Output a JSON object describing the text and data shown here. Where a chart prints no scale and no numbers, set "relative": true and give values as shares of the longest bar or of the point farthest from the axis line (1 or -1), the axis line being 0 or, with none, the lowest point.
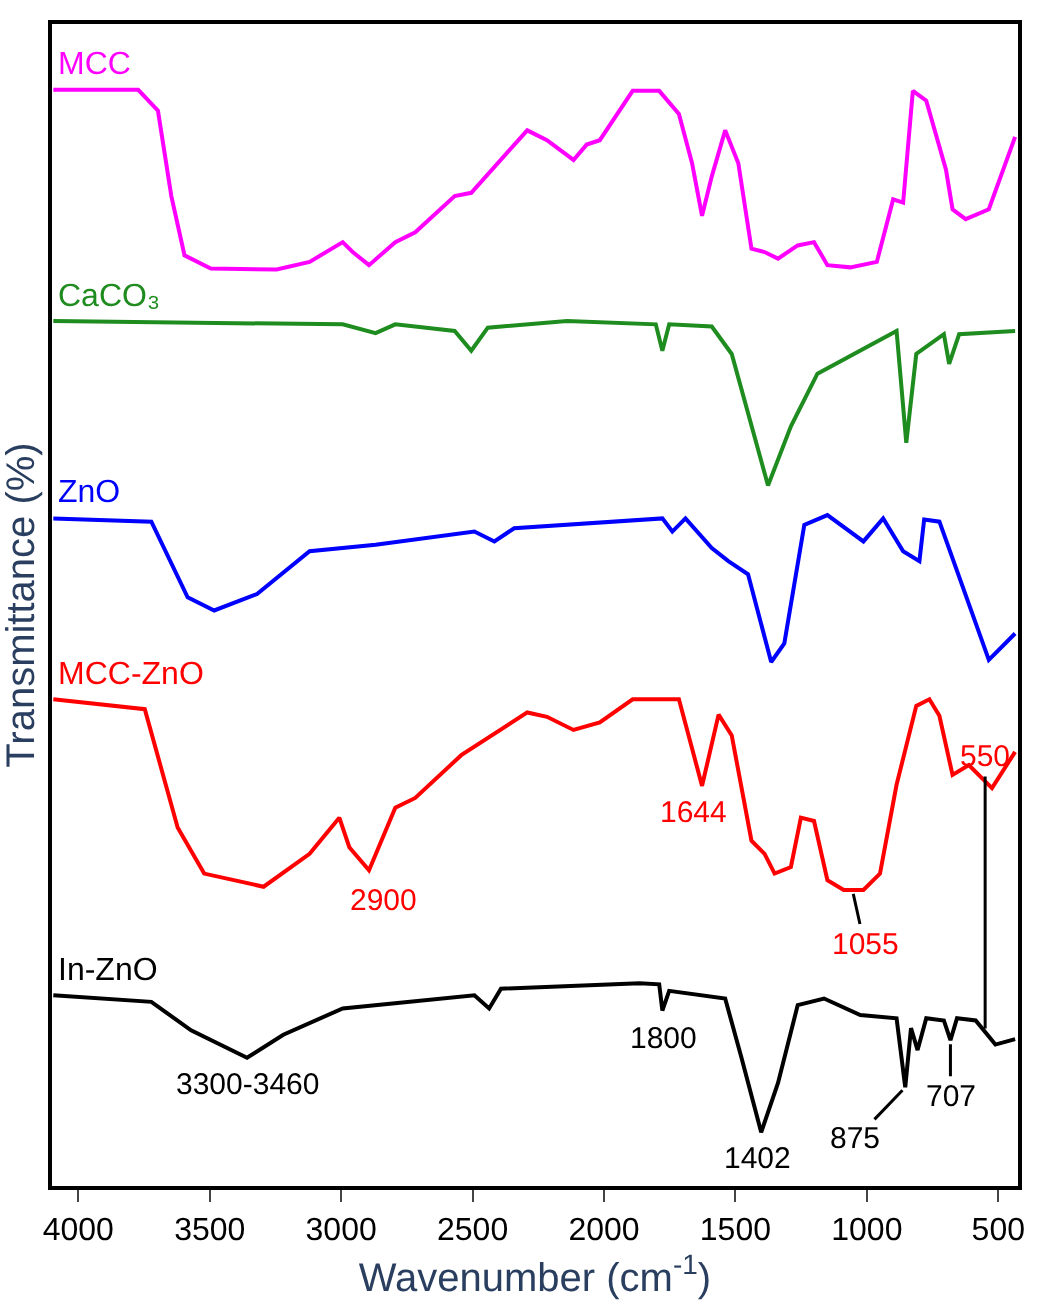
{
  "chart_data": {
    "type": "line",
    "relative": true,
    "xlabel": "Wavenumber (cm$^{-1}$)",
    "ylabel": "Transmittance (%)",
    "xlim": [
      4100,
      425
    ],
    "xticks": [
      4000,
      3500,
      3000,
      2500,
      2000,
      1500,
      1000,
      500
    ],
    "tick_labels": "x",
    "grid": false,
    "legend": false,
    "marker": "none",
    "line_style": "solid",
    "series": [
      {
        "name": "MCC",
        "color": "#ff00ff",
        "x": [
          4095,
          3772,
          3697,
          3646,
          3596,
          3496,
          3245,
          3120,
          2994,
          2956,
          2894,
          2794,
          2718,
          2568,
          2505,
          2292,
          2217,
          2116,
          2066,
          2016,
          1891,
          1790,
          1715,
          1665,
          1627,
          1590,
          1539,
          1489,
          1439,
          1389,
          1338,
          1263,
          1201,
          1150,
          1063,
          962,
          900,
          862,
          825,
          774,
          699,
          674,
          624,
          536,
          436
        ],
        "values": [
          1.0,
          1.0,
          0.981,
          0.903,
          0.849,
          0.837,
          0.836,
          0.843,
          0.861,
          0.852,
          0.84,
          0.861,
          0.87,
          0.903,
          0.906,
          0.963,
          0.954,
          0.936,
          0.95,
          0.954,
          0.999,
          0.999,
          0.978,
          0.933,
          0.885,
          0.921,
          0.963,
          0.933,
          0.855,
          0.852,
          0.846,
          0.858,
          0.861,
          0.84,
          0.838,
          0.843,
          0.9,
          0.897,
          0.999,
          0.99,
          0.927,
          0.891,
          0.882,
          0.891,
          0.957
        ]
      },
      {
        "name": "CaCO₃",
        "color": "#1e8c1e",
        "x": [
          4095,
          2994,
          2869,
          2794,
          2568,
          2505,
          2442,
          2141,
          1803,
          1778,
          1752,
          1590,
          1514,
          1376,
          1289,
          1188,
          887,
          850,
          812,
          707,
          687,
          649,
          436
        ],
        "values": [
          0.789,
          0.786,
          0.778,
          0.786,
          0.78,
          0.762,
          0.783,
          0.789,
          0.786,
          0.762,
          0.786,
          0.784,
          0.759,
          0.639,
          0.693,
          0.741,
          0.78,
          0.678,
          0.759,
          0.777,
          0.75,
          0.777,
          0.78
        ]
      },
      {
        "name": "ZnO",
        "color": "#0000ff",
        "x": [
          4095,
          3722,
          3584,
          3483,
          3320,
          3120,
          2869,
          2493,
          2417,
          2342,
          1778,
          1740,
          1690,
          1590,
          1527,
          1452,
          1364,
          1314,
          1238,
          1150,
          1013,
          938,
          862,
          800,
          782,
          724,
          536,
          436
        ],
        "values": [
          0.609,
          0.606,
          0.537,
          0.525,
          0.54,
          0.579,
          0.585,
          0.597,
          0.588,
          0.6,
          0.609,
          0.597,
          0.609,
          0.582,
          0.57,
          0.558,
          0.478,
          0.495,
          0.603,
          0.612,
          0.588,
          0.609,
          0.579,
          0.57,
          0.608,
          0.606,
          0.48,
          0.504
        ]
      },
      {
        "name": "MCC-ZnO",
        "color": "#ff0000",
        "x": [
          4095,
          3747,
          3622,
          3521,
          3295,
          3120,
          3007,
          2969,
          2894,
          2794,
          2718,
          2543,
          2292,
          2217,
          2116,
          2016,
          1891,
          1715,
          1627,
          1564,
          1514,
          1439,
          1389,
          1351,
          1289,
          1251,
          1201,
          1150,
          1088,
          1013,
          950,
          887,
          812,
          762,
          724,
          674,
          612,
          524,
          436
        ],
        "values": [
          0.444,
          0.435,
          0.327,
          0.285,
          0.273,
          0.303,
          0.336,
          0.309,
          0.288,
          0.345,
          0.354,
          0.393,
          0.432,
          0.428,
          0.416,
          0.423,
          0.444,
          0.444,
          0.365,
          0.43,
          0.411,
          0.315,
          0.303,
          0.285,
          0.291,
          0.336,
          0.333,
          0.279,
          0.27,
          0.27,
          0.285,
          0.366,
          0.438,
          0.444,
          0.429,
          0.375,
          0.384,
          0.363,
          0.396
        ]
      },
      {
        "name": "In-ZnO",
        "color": "#000000",
        "x": [
          4095,
          3722,
          3571,
          3358,
          3220,
          2994,
          2493,
          2437,
          2392,
          1865,
          1790,
          1778,
          1752,
          1539,
          1477,
          1402,
          1338,
          1263,
          1163,
          1025,
          887,
          854,
          832,
          807,
          774,
          707,
          682,
          657,
          586,
          511,
          436
        ],
        "values": [
          0.174,
          0.168,
          0.142,
          0.117,
          0.138,
          0.162,
          0.174,
          0.162,
          0.18,
          0.185,
          0.184,
          0.16,
          0.178,
          0.171,
          0.117,
          0.049,
          0.094,
          0.165,
          0.171,
          0.156,
          0.153,
          0.09,
          0.144,
          0.124,
          0.153,
          0.151,
          0.133,
          0.153,
          0.151,
          0.129,
          0.134
        ]
      }
    ],
    "annotations": [
      {
        "text": "2900",
        "x": 2894,
        "y": 0.288
      },
      {
        "text": "1644",
        "x": 1627,
        "y": 0.365
      },
      {
        "text": "1055",
        "x": 1055,
        "y": 0.27
      },
      {
        "text": "550",
        "x": 550,
        "y": 0.14
      },
      {
        "text": "3300-3460",
        "x": 3358,
        "y": 0.117
      },
      {
        "text": "1800",
        "x": 1778,
        "y": 0.16
      },
      {
        "text": "1402",
        "x": 1402,
        "y": 0.049
      },
      {
        "text": "875",
        "x": 854,
        "y": 0.09
      },
      {
        "text": "707",
        "x": 682,
        "y": 0.133
      }
    ]
  }
}
